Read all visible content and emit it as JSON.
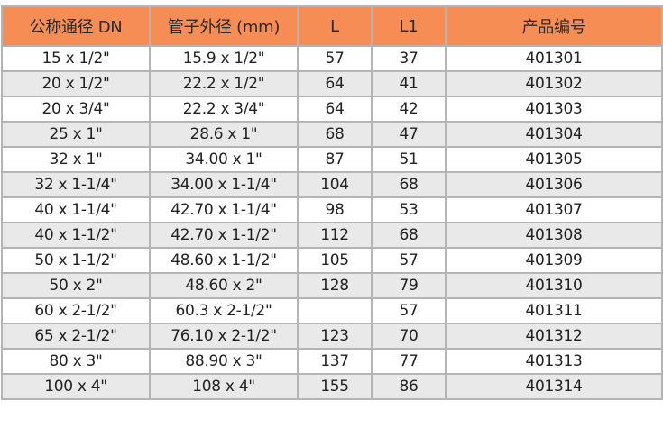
{
  "header_color": "#f68d55",
  "columns": [
    "公称通径 DN",
    "管子外径 (mm)",
    "L",
    "L1",
    "产品编号"
  ],
  "rows": [
    [
      "15 x 1/2\"",
      "15.9 x 1/2\"",
      "57",
      "37",
      "401301"
    ],
    [
      "20 x 1/2\"",
      "22.2 x 1/2\"",
      "64",
      "41",
      "401302"
    ],
    [
      "20 x 3/4\"",
      "22.2 x 3/4\"",
      "64",
      "42",
      "401303"
    ],
    [
      "25 x 1\"",
      "28.6 x 1\"",
      "68",
      "47",
      "401304"
    ],
    [
      "32 x 1\"",
      "34.00 x 1\"",
      "87",
      "51",
      "401305"
    ],
    [
      "32 x 1-1/4\"",
      "34.00 x 1-1/4\"",
      "104",
      "68",
      "401306"
    ],
    [
      "40 x 1-1/4\"",
      "42.70 x 1-1/4\"",
      "98",
      "53",
      "401307"
    ],
    [
      "40 x 1-1/2\"",
      "42.70 x 1-1/2\"",
      "112",
      "68",
      "401308"
    ],
    [
      "50 x 1-1/2\"",
      "48.60 x 1-1/2\"",
      "105",
      "57",
      "401309"
    ],
    [
      "50 x 2\"",
      "48.60 x 2\"",
      "128",
      "79",
      "401310"
    ],
    [
      "60 x 2-1/2\"",
      "60.3 x 2-1/2\"",
      "",
      "57",
      "401311"
    ],
    [
      "65 x 2-1/2\"",
      "76.10 x 2-1/2\"",
      "123",
      "70",
      "401312"
    ],
    [
      "80 x 3\"",
      "88.90 x 3\"",
      "137",
      "77",
      "401313"
    ],
    [
      "100 x 4\"",
      "108 x 4\"",
      "155",
      "86",
      "401314"
    ]
  ]
}
